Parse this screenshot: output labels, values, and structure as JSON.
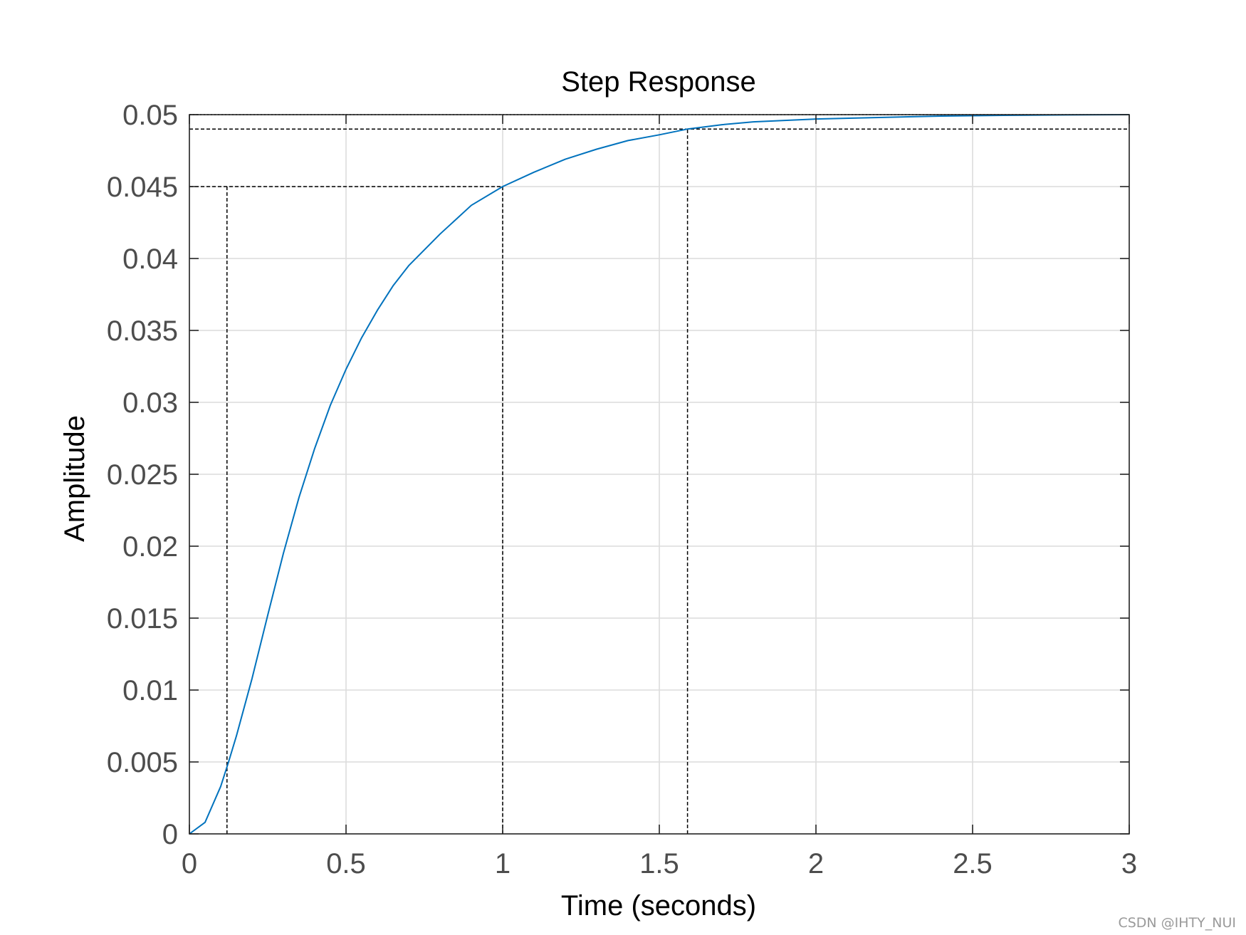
{
  "chart_data": {
    "type": "line",
    "title": "Step Response",
    "xlabel": "Time (seconds)",
    "ylabel": "Amplitude",
    "xlim": [
      0,
      3
    ],
    "ylim": [
      0,
      0.05
    ],
    "xticks": [
      0,
      0.5,
      1,
      1.5,
      2,
      2.5,
      3
    ],
    "xtick_labels": [
      "0",
      "0.5",
      "1",
      "1.5",
      "2",
      "2.5",
      "3"
    ],
    "yticks": [
      0,
      0.005,
      0.01,
      0.015,
      0.02,
      0.025,
      0.03,
      0.035,
      0.04,
      0.045,
      0.05
    ],
    "ytick_labels": [
      "0",
      "0.005",
      "0.01",
      "0.015",
      "0.02",
      "0.025",
      "0.03",
      "0.035",
      "0.04",
      "0.045",
      "0.05"
    ],
    "grid": true,
    "series": [
      {
        "color": "#0072bd",
        "x": [
          0,
          0.05,
          0.1,
          0.125,
          0.15,
          0.2,
          0.25,
          0.3,
          0.35,
          0.4,
          0.45,
          0.5,
          0.55,
          0.6,
          0.65,
          0.7,
          0.8,
          0.9,
          1.0,
          1.1,
          1.2,
          1.3,
          1.4,
          1.5,
          1.59,
          1.7,
          1.8,
          1.9,
          2.0,
          2.2,
          2.4,
          2.6,
          2.8,
          3.0
        ],
        "y": [
          0,
          0.0008,
          0.0033,
          0.005,
          0.0068,
          0.0108,
          0.0152,
          0.0195,
          0.0234,
          0.0268,
          0.0298,
          0.0323,
          0.0345,
          0.0364,
          0.0381,
          0.0395,
          0.0417,
          0.0437,
          0.045,
          0.046,
          0.0469,
          0.0476,
          0.0482,
          0.0486,
          0.049,
          0.0493,
          0.0495,
          0.0496,
          0.0497,
          0.0498,
          0.0499,
          0.04995,
          0.04998,
          0.05
        ]
      }
    ],
    "reference_lines": [
      {
        "style": "dotted",
        "kind": "horizontal",
        "y": 0.05,
        "x_from": 0,
        "x_to": 3
      },
      {
        "style": "dashed",
        "kind": "horizontal",
        "y": 0.049,
        "x_from": 0,
        "x_to": 3
      },
      {
        "style": "dashed",
        "kind": "horizontal",
        "y": 0.045,
        "x_from": 0,
        "x_to": 1.0
      },
      {
        "style": "dashed",
        "kind": "vertical",
        "x": 0.12,
        "y_from": 0,
        "y_to": 0.045
      },
      {
        "style": "dashed",
        "kind": "vertical",
        "x": 1.0,
        "y_from": 0,
        "y_to": 0.045
      },
      {
        "style": "dashed",
        "kind": "vertical",
        "x": 1.59,
        "y_from": 0,
        "y_to": 0.049
      }
    ]
  },
  "watermark": "CSDN @IHTY_NUI"
}
